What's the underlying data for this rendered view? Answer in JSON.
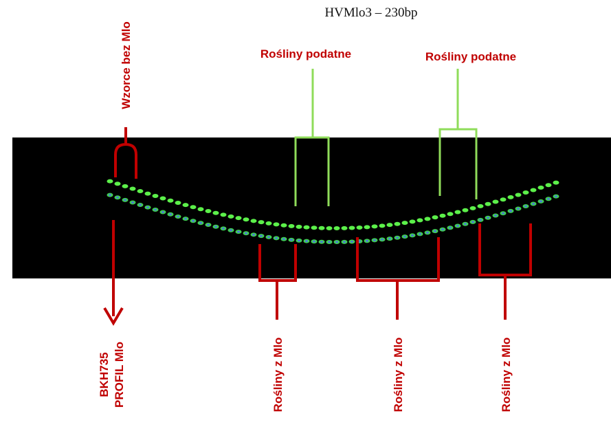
{
  "title": "HVMlo3 – 230bp",
  "labels": {
    "standards": "Wzorce bez Mlo",
    "susceptible": [
      "Rośliny podatne",
      "Rośliny podatne"
    ],
    "with_mlo": [
      "Rośliny z  Mlo",
      "Rośliny z  Mlo",
      "Rośliny z  Mlo"
    ],
    "reference": [
      "BKH735",
      "PROFIL Mlo"
    ]
  }
}
